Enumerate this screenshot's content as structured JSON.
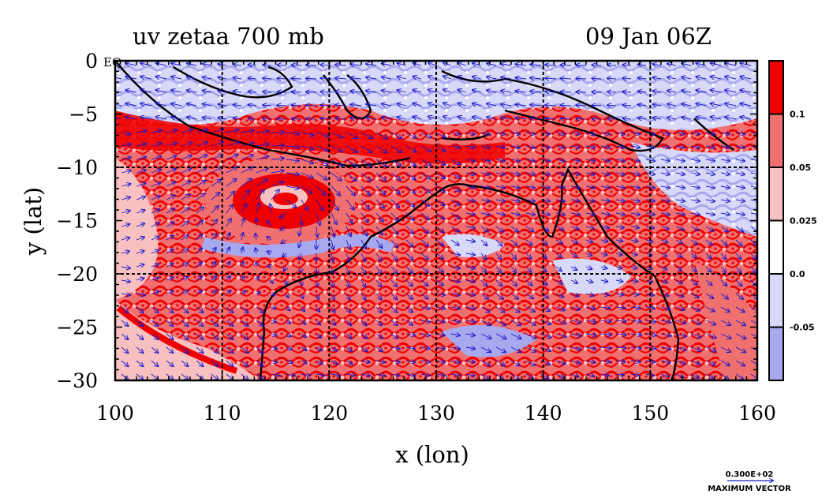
{
  "title": {
    "left": "uv zetaa 700 mb",
    "right": "09 Jan 06Z"
  },
  "axes": {
    "x_label": "x (lon)",
    "y_label": "y (lat)",
    "x_ticks": [
      "100",
      "110",
      "120",
      "130",
      "140",
      "150",
      "160"
    ],
    "y_ticks": [
      "0",
      "−5",
      "−10",
      "−15",
      "−20",
      "−25",
      "−30"
    ],
    "eq_label": "EQ",
    "x_range": [
      100,
      160
    ],
    "y_range": [
      -30,
      0
    ],
    "grid_lines_x": [
      110,
      120,
      130,
      140,
      150
    ],
    "grid_lines_y": [
      -10,
      -20
    ]
  },
  "colorbar": {
    "labels": [
      "0.1",
      "0.05",
      "0.025",
      "0.0",
      "-0.05"
    ],
    "colors": [
      "#ee0000",
      "#f07070",
      "#f8c0c0",
      "#ffffff",
      "#d8d8f8",
      "#a8a8ee"
    ]
  },
  "vector_legend": {
    "value": "0.300E+02",
    "label": "MAXIMUM VECTOR"
  },
  "colors": {
    "strong_positive": "#ee0000",
    "positive": "#f07070",
    "weak_positive": "#f8c0c0",
    "weak_negative": "#d8d8f8",
    "negative": "#a8a8ee",
    "vectors": "#1a1acc",
    "coastline": "#000000"
  }
}
